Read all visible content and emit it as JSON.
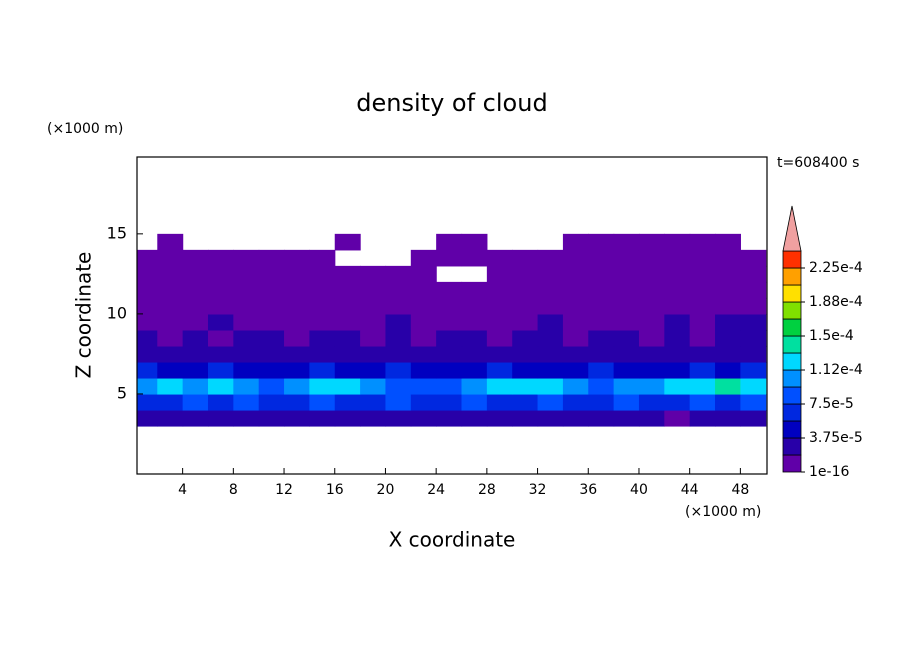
{
  "chart_data": {
    "type": "contour",
    "title": "density of cloud",
    "xlabel": "X coordinate",
    "ylabel": "Z coordinate",
    "xunit": "(×1000 m)",
    "yunit": "(×1000 m)",
    "time_label": "t=608400 s",
    "xlim": [
      0.4,
      50.1
    ],
    "ylim": [
      0,
      19.8
    ],
    "xticks": [
      4,
      8,
      12,
      16,
      20,
      24,
      28,
      32,
      36,
      40,
      44,
      48
    ],
    "yticks": [
      5,
      10,
      15
    ],
    "x": [
      1,
      3,
      5,
      7,
      9,
      11,
      13,
      15,
      17,
      19,
      21,
      23,
      25,
      27,
      29,
      31,
      33,
      35,
      37,
      39,
      41,
      43,
      45,
      47,
      49
    ],
    "z": [
      3.5,
      4.5,
      5.5,
      6.5,
      7.5,
      8.5,
      9.5,
      10.5,
      11.5,
      12.5,
      13.5,
      14.5
    ],
    "values": [
      [
        2e-05,
        2.5e-05,
        2e-05,
        2.5e-05,
        2e-05,
        2e-05,
        2.5e-05,
        2e-05,
        2.5e-05,
        2e-05,
        2e-05,
        2.5e-05,
        2e-05,
        2e-05,
        2.5e-05,
        2e-05,
        2e-05,
        2.5e-05,
        2e-05,
        2e-05,
        2.5e-05,
        1e-05,
        2e-05,
        2.5e-05,
        2e-05
      ],
      [
        6e-05,
        7e-05,
        8e-05,
        7e-05,
        8e-05,
        6e-05,
        7e-05,
        8e-05,
        6e-05,
        7e-05,
        8e-05,
        7e-05,
        6e-05,
        8e-05,
        7e-05,
        6e-05,
        8e-05,
        7e-05,
        6e-05,
        8e-05,
        7e-05,
        6e-05,
        8e-05,
        7e-05,
        8e-05
      ],
      [
        0.0001,
        0.00012,
        0.00011,
        0.000125,
        0.0001,
        9e-05,
        0.00011,
        0.00012,
        0.000125,
        0.00011,
        9e-05,
        8e-05,
        9e-05,
        0.00011,
        0.00012,
        0.000125,
        0.000115,
        0.0001,
        9e-05,
        0.0001,
        0.00011,
        0.00012,
        0.000125,
        0.000135,
        0.00012
      ],
      [
        6e-05,
        5e-05,
        4e-05,
        6e-05,
        5e-05,
        4e-05,
        5e-05,
        6e-05,
        5e-05,
        4e-05,
        6e-05,
        5e-05,
        4e-05,
        5e-05,
        6e-05,
        5e-05,
        4e-05,
        5e-05,
        6e-05,
        5e-05,
        4e-05,
        5e-05,
        6e-05,
        5e-05,
        6e-05
      ],
      [
        3e-05,
        2.5e-05,
        2e-05,
        3e-05,
        2.5e-05,
        3e-05,
        2e-05,
        2.5e-05,
        3e-05,
        2e-05,
        2.5e-05,
        3e-05,
        2e-05,
        2.5e-05,
        3e-05,
        2.5e-05,
        2e-05,
        3e-05,
        2.5e-05,
        2e-05,
        3e-05,
        2.5e-05,
        3e-05,
        2e-05,
        2.5e-05
      ],
      [
        2e-05,
        1.5e-05,
        2e-05,
        1.5e-05,
        2e-05,
        2e-05,
        1.5e-05,
        2e-05,
        2e-05,
        1.5e-05,
        2e-05,
        1.5e-05,
        2e-05,
        2e-05,
        1.5e-05,
        2e-05,
        2e-05,
        1.5e-05,
        2e-05,
        2e-05,
        1.5e-05,
        2e-05,
        1.5e-05,
        2e-05,
        2e-05
      ],
      [
        1.5e-05,
        1e-05,
        1.5e-05,
        2e-05,
        1e-05,
        1.5e-05,
        1e-05,
        1.5e-05,
        1e-05,
        1.5e-05,
        2e-05,
        1.5e-05,
        1e-05,
        1.5e-05,
        1e-05,
        1.5e-05,
        2e-05,
        1e-05,
        1.5e-05,
        1e-05,
        1.5e-05,
        2e-05,
        1e-05,
        2e-05,
        2e-05
      ],
      [
        5e-06,
        5e-06,
        5e-06,
        5e-06,
        5e-06,
        5e-06,
        5e-06,
        5e-06,
        5e-06,
        5e-06,
        5e-06,
        5e-06,
        5e-06,
        5e-06,
        5e-06,
        5e-06,
        5e-06,
        5e-06,
        5e-06,
        5e-06,
        5e-06,
        5e-06,
        5e-06,
        5e-06,
        5e-06
      ],
      [
        5e-06,
        5e-06,
        5e-06,
        5e-06,
        5e-06,
        5e-06,
        5e-06,
        5e-06,
        5e-06,
        5e-06,
        5e-06,
        5e-06,
        5e-06,
        5e-06,
        5e-06,
        5e-06,
        5e-06,
        5e-06,
        5e-06,
        5e-06,
        5e-06,
        5e-06,
        5e-06,
        5e-06,
        5e-06
      ],
      [
        5e-06,
        5e-06,
        5e-06,
        5e-06,
        5e-06,
        5e-06,
        5e-06,
        5e-06,
        5e-06,
        5e-06,
        5e-06,
        5e-06,
        null,
        null,
        5e-06,
        5e-06,
        5e-06,
        5e-06,
        5e-06,
        5e-06,
        5e-06,
        5e-06,
        5e-06,
        5e-06,
        5e-06
      ],
      [
        5e-06,
        5e-06,
        5e-06,
        5e-06,
        5e-06,
        5e-06,
        5e-06,
        5e-06,
        null,
        null,
        null,
        5e-06,
        5e-06,
        5e-06,
        5e-06,
        5e-06,
        5e-06,
        5e-06,
        5e-06,
        5e-06,
        5e-06,
        5e-06,
        5e-06,
        5e-06,
        5e-06
      ],
      [
        null,
        5e-06,
        null,
        null,
        null,
        null,
        null,
        null,
        5e-06,
        null,
        null,
        null,
        5e-06,
        5e-06,
        null,
        null,
        null,
        5e-06,
        5e-06,
        5e-06,
        5e-06,
        5e-06,
        5e-06,
        5e-06,
        null
      ]
    ],
    "colorbar": {
      "levels": [
        1e-16,
        1.875e-05,
        3.75e-05,
        5.625e-05,
        7.5e-05,
        9.375e-05,
        0.0001125,
        0.00013125,
        0.00015,
        0.00016875,
        0.0001875,
        0.00020625,
        0.000225,
        0.00024375
      ],
      "colors": [
        "#6000a8",
        "#2800a8",
        "#0000c0",
        "#0028e0",
        "#0050ff",
        "#0090ff",
        "#00d8ff",
        "#00e0a0",
        "#00d040",
        "#80e000",
        "#ffe000",
        "#ffa000",
        "#ff3000"
      ],
      "over_color": "#f0a0a0",
      "ticks": [
        1e-16,
        {
          "value": 3.75e-05,
          "label": "3.75e-5"
        },
        {
          "value": 7.5e-05,
          "label": "7.5e-5"
        },
        {
          "value": 0.0001125,
          "label": "1.12e-4"
        },
        {
          "value": 0.00015,
          "label": "1.5e-4"
        },
        {
          "value": 0.0001875,
          "label": "1.88e-4"
        },
        {
          "value": 0.000225,
          "label": "2.25e-4"
        }
      ]
    }
  }
}
